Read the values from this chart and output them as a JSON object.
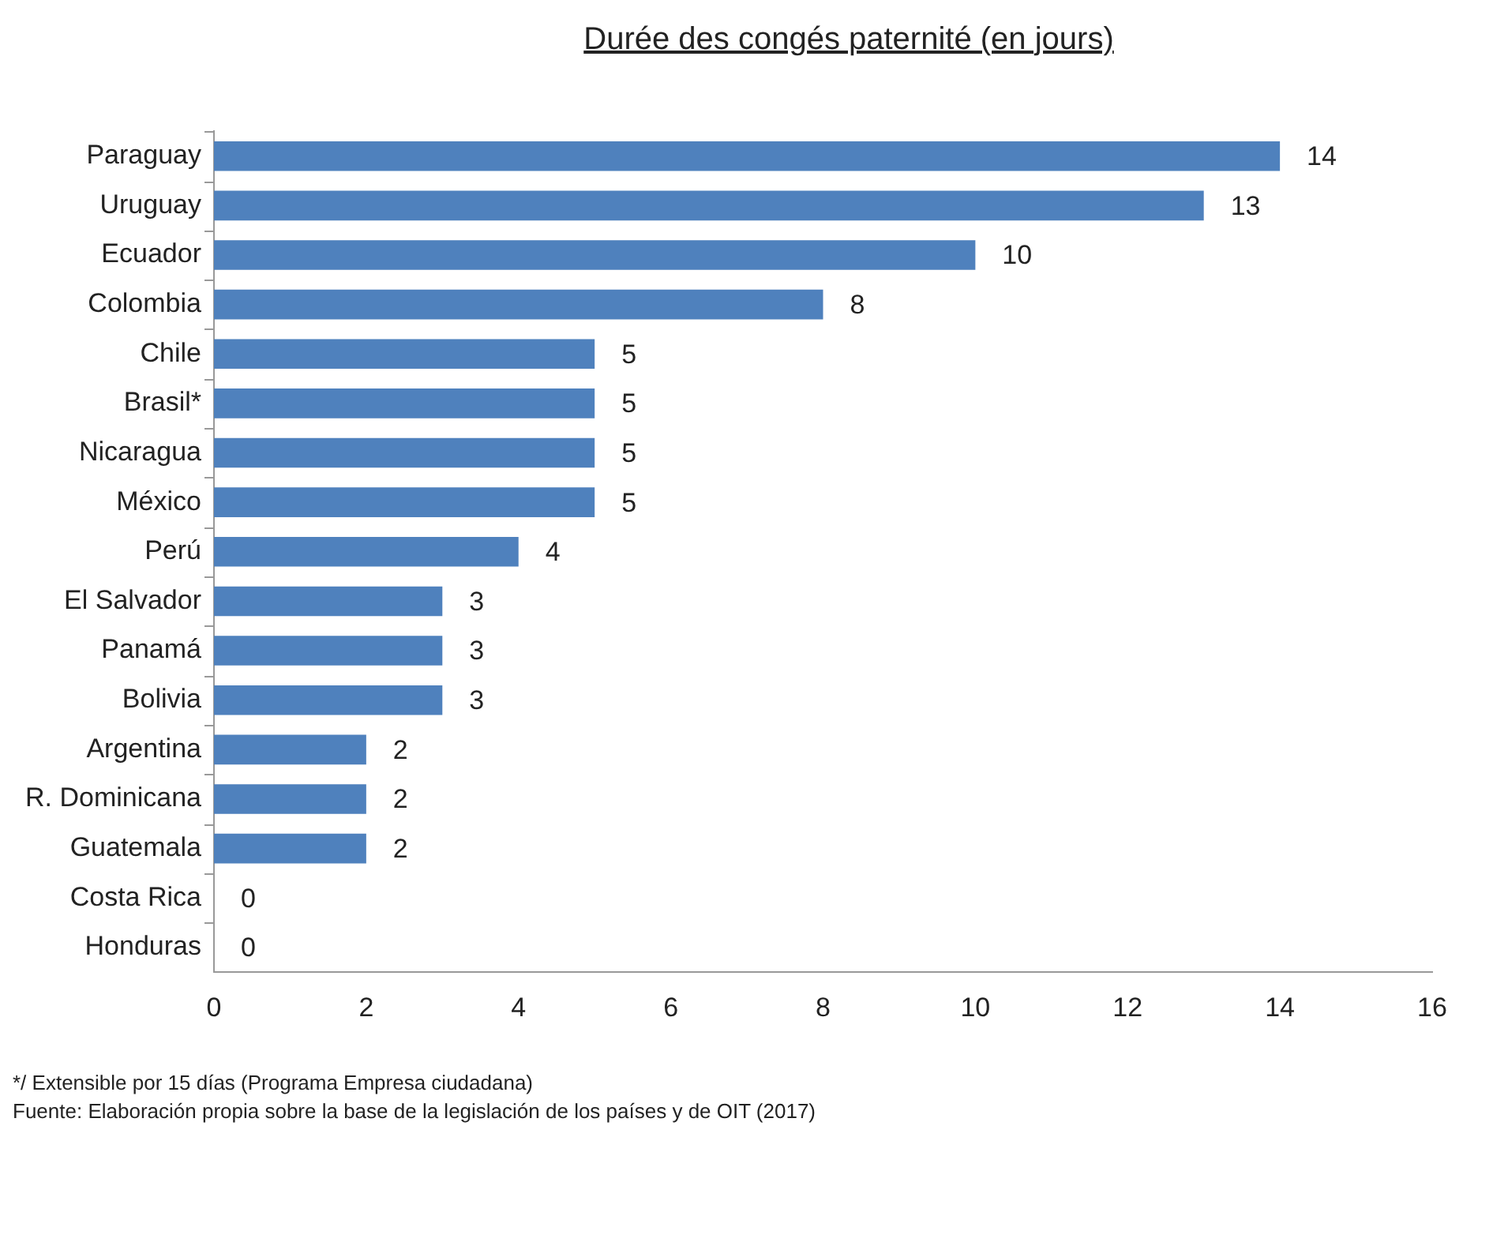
{
  "chart_data": {
    "type": "bar",
    "orientation": "horizontal",
    "title": "Durée des congés paternité (en jours)",
    "categories": [
      "Paraguay",
      "Uruguay",
      "Ecuador",
      "Colombia",
      "Chile",
      "Brasil*",
      "Nicaragua",
      "México",
      "Perú",
      "El Salvador",
      "Panamá",
      "Bolivia",
      "Argentina",
      "R. Dominicana",
      "Guatemala",
      "Costa Rica",
      "Honduras"
    ],
    "values": [
      14,
      13,
      10,
      8,
      5,
      5,
      5,
      5,
      4,
      3,
      3,
      3,
      2,
      2,
      2,
      0,
      0
    ],
    "color": "#4f81bd",
    "xlim": [
      0,
      16
    ],
    "xticks": [
      0,
      2,
      4,
      6,
      8,
      10,
      12,
      14,
      16
    ],
    "grid": false,
    "legend": false,
    "data_labels": true,
    "annotations": [
      "*/ Extensible por 15 días (Programa Empresa ciudadana)",
      "Fuente: Elaboración propia sobre la base de la legislación de los países y de OIT (2017)"
    ]
  }
}
